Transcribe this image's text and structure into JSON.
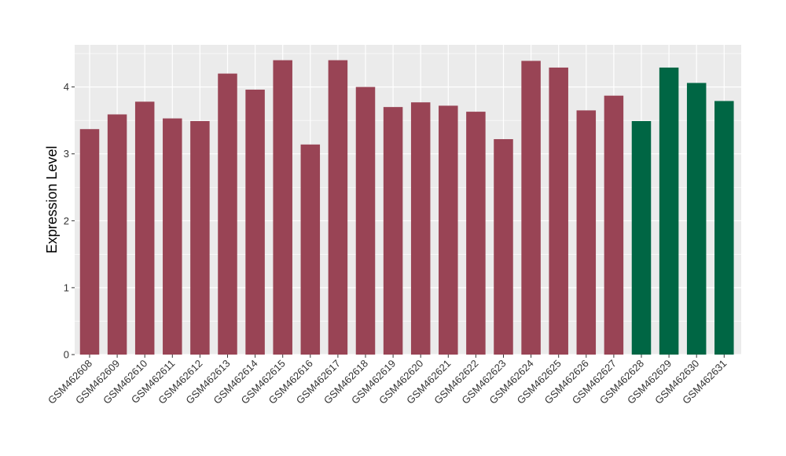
{
  "chart_data": {
    "type": "bar",
    "title": "",
    "xlabel": "",
    "ylabel": "Expression Level",
    "ylim": [
      0,
      4.63
    ],
    "yticks": [
      0,
      1,
      2,
      3,
      4
    ],
    "grid": true,
    "categories": [
      "GSM462608",
      "GSM462609",
      "GSM462610",
      "GSM462611",
      "GSM462612",
      "GSM462613",
      "GSM462614",
      "GSM462615",
      "GSM462616",
      "GSM462617",
      "GSM462618",
      "GSM462619",
      "GSM462620",
      "GSM462621",
      "GSM462622",
      "GSM462623",
      "GSM462624",
      "GSM462625",
      "GSM462626",
      "GSM462627",
      "GSM462628",
      "GSM462629",
      "GSM462630",
      "GSM462631"
    ],
    "values": [
      3.37,
      3.59,
      3.78,
      3.53,
      3.49,
      4.2,
      3.96,
      4.4,
      3.14,
      4.4,
      4.0,
      3.7,
      3.77,
      3.72,
      3.63,
      3.22,
      4.39,
      4.29,
      3.65,
      3.87,
      3.49,
      4.29,
      4.06,
      3.79
    ],
    "groups": [
      0,
      0,
      0,
      0,
      0,
      0,
      0,
      0,
      0,
      0,
      0,
      0,
      0,
      0,
      0,
      0,
      0,
      0,
      0,
      0,
      1,
      1,
      1,
      1
    ],
    "colors": {
      "group0": "#994455",
      "group1": "#006644",
      "panel": "#ebebeb",
      "grid": "#ffffff"
    }
  }
}
